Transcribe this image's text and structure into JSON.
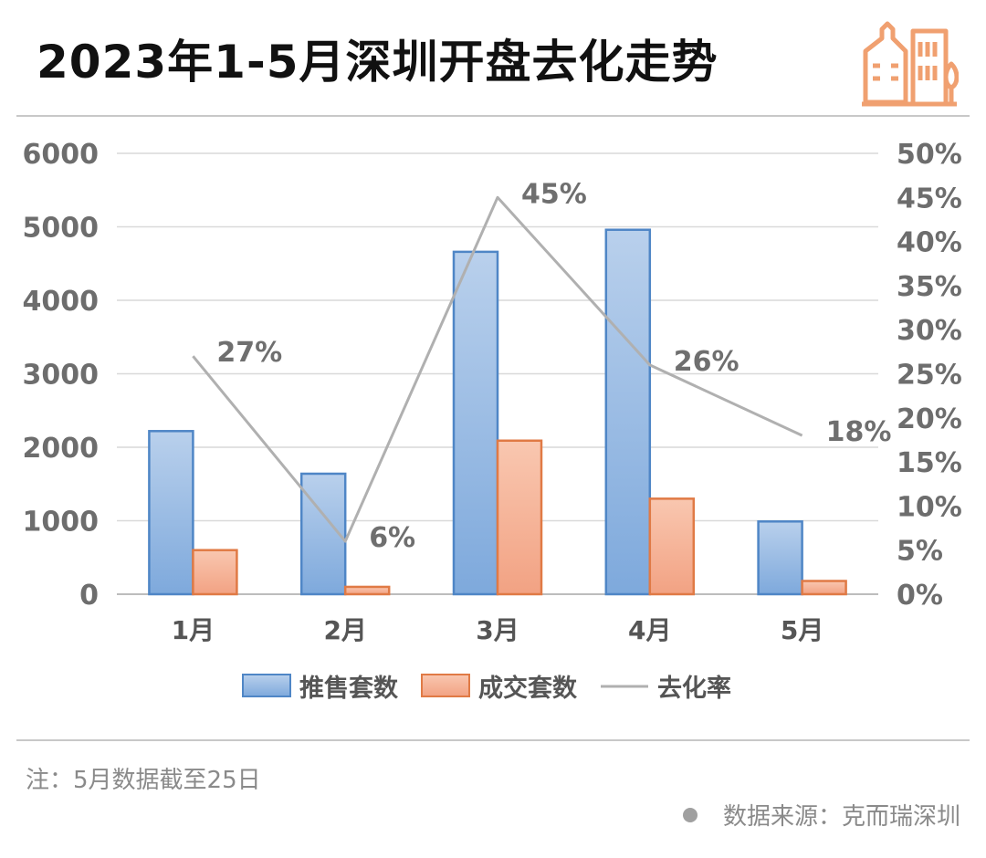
{
  "header": {
    "title": "2023年1-5月深圳开盘去化走势",
    "icon": "building-icon"
  },
  "colors": {
    "supply_fill_top": "#b9d0ec",
    "supply_fill_bottom": "#7ea9dc",
    "supply_stroke": "#4f86c6",
    "sold_fill_top": "#f9c7b0",
    "sold_fill_bottom": "#f2a283",
    "sold_stroke": "#e07a45",
    "rate_line": "#b0b0b0",
    "icon": "#f0a070"
  },
  "chart_data": {
    "type": "bar",
    "categories": [
      "1月",
      "2月",
      "3月",
      "4月",
      "5月"
    ],
    "series": [
      {
        "name": "推售套数",
        "kind": "bar",
        "axis": "left",
        "values": [
          2220,
          1640,
          4660,
          4960,
          990
        ]
      },
      {
        "name": "成交套数",
        "kind": "bar",
        "axis": "left",
        "values": [
          600,
          100,
          2090,
          1300,
          180
        ]
      },
      {
        "name": "去化率",
        "kind": "line",
        "axis": "right",
        "values": [
          27,
          6,
          45,
          26,
          18
        ],
        "labels": [
          "27%",
          "6%",
          "45%",
          "26%",
          "18%"
        ]
      }
    ],
    "y_left": {
      "ylim": [
        0,
        6000
      ],
      "ticks": [
        "0",
        "1000",
        "2000",
        "3000",
        "4000",
        "5000",
        "6000"
      ]
    },
    "y_right": {
      "ylim": [
        0,
        50
      ],
      "ticks": [
        "0%",
        "5%",
        "10%",
        "15%",
        "20%",
        "25%",
        "30%",
        "35%",
        "40%",
        "45%",
        "50%"
      ]
    },
    "grid": true,
    "legend": "bottom"
  },
  "footer": {
    "note": "注：5月数据截至25日",
    "source": "数据来源：克而瑞深圳"
  }
}
